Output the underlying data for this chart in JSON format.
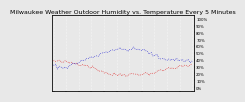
{
  "title": "Milwaukee Weather Outdoor Humidity vs. Temperature Every 5 Minutes",
  "line1_color": "#dd0000",
  "line2_color": "#0000cc",
  "bg_color": "#e8e8e8",
  "plot_bg": "#e8e8e8",
  "grid_color": "#ffffff",
  "n_points": 72,
  "y_right_labels": [
    "100%",
    "90%",
    "80%",
    "70%",
    "60%",
    "50%",
    "40%",
    "30%",
    "20%",
    "10%",
    "0%"
  ],
  "y_right_ticks": [
    100,
    90,
    80,
    70,
    60,
    50,
    40,
    30,
    20,
    10,
    0
  ],
  "ylim": [
    -5,
    105
  ],
  "title_fontsize": 4.5,
  "tick_fontsize": 2.8
}
